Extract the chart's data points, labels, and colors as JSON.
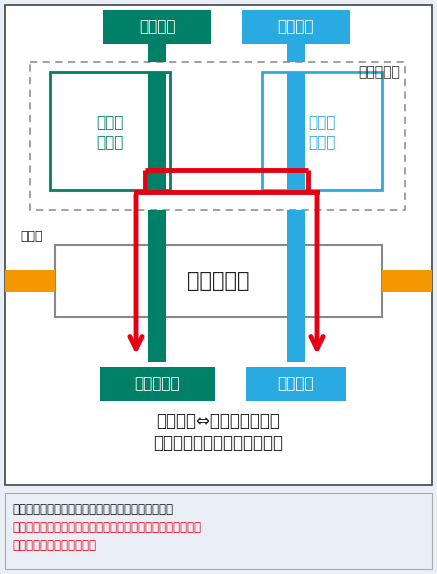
{
  "bg_color": "#eaeff7",
  "diagram_bg": "#eaeff7",
  "white": "#ffffff",
  "green_color": "#008066",
  "blue_color": "#29abe2",
  "orange_color": "#f39800",
  "red_color": "#e60012",
  "gray_border": "#999999",
  "text_dark": "#222222",
  "label_asao": "麻生方面",
  "label_sakaemachi": "栄町方面",
  "label_nanboku_line1": "南北線",
  "label_nanboku_line2": "改　札",
  "label_toyoho_line1": "東豊線",
  "label_toyoho_line2": "改　札",
  "label_sapporo_eki": "さっぽろ駅",
  "label_tozai": "東西線",
  "label_odori": "大　通　駅",
  "label_makomanai": "真駒内方面",
  "label_fukuzumi": "福住方面",
  "caption_line1": "真駒内駅⇔福住駅間などを",
  "caption_line2": "さっぽろ駅で乗り換えた場合",
  "footer_line1": "「さっぽろ駅」〜「大通駅」間が重複しています。",
  "footer_line2": "「さっぽろ駅」まで乗らずに「大通駅」で乗り換えると、最",
  "footer_line3": "短の乗車経路となります。"
}
